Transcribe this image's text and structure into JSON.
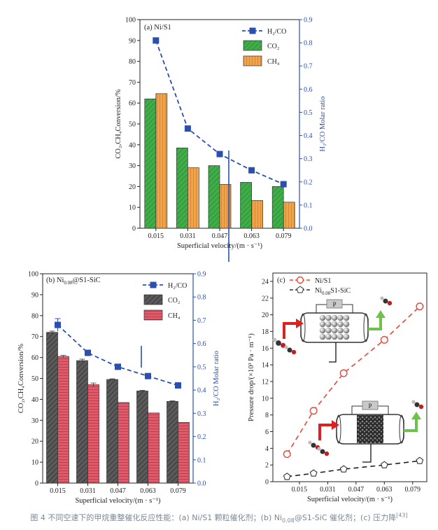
{
  "caption": {
    "text_before": "图 4   不同空速下的甲烷重整催化反应性能：(a) Ni/S1 颗粒催化剂；(b) Ni",
    "sub": "0.08",
    "text_after": "@S1-SiC 催化剂；(c) 压力降",
    "ref": "[43]"
  },
  "panels": {
    "a": {
      "label": "(a)   Ni/S1",
      "xlabel": "Superficial velocity/(m · s⁻¹)",
      "ylabel_left": "CO₂,CH₄Conversion/%",
      "ylabel_right": "H₂/CO Molar ratio",
      "legend": [
        "H₂/CO",
        "CO₂",
        "CH₄"
      ]
    },
    "b": {
      "label_prefix": "(b)   Ni",
      "label_sub": "0.08",
      "label_suffix": "@S1-SiC",
      "xlabel": "Superficial velocity/(m · s⁻¹)",
      "ylabel_left": "CO₂,CH₄Conversion/%",
      "ylabel_right": "H₂/CO Molar ratio",
      "legend": [
        "H₂/CO",
        "CO₂",
        "CH₄"
      ]
    },
    "c": {
      "label": "(c)",
      "xlabel": "Superficial velocity/(m · s⁻¹)",
      "ylabel": "Pressure drop/(×10³ Pa · m⁻¹)",
      "legend": [
        "Ni/S1",
        "Ni0.08S1-SiC"
      ],
      "p_label": "P"
    }
  },
  "chart_data": [
    {
      "panel": "a",
      "type": "bar",
      "categories": [
        "0.015",
        "0.031",
        "0.047",
        "0.063",
        "0.079"
      ],
      "ylim": [
        0,
        100
      ],
      "yticks": [
        0,
        10,
        20,
        30,
        40,
        50,
        60,
        70,
        80,
        90,
        100
      ],
      "y2lim": [
        0,
        0.9
      ],
      "y2ticks": [
        "0.0",
        "0.1",
        "0.2",
        "0.3",
        "0.4",
        "0.5",
        "0.6",
        "0.7",
        "0.8",
        "0.9"
      ],
      "series": [
        {
          "name": "CO₂",
          "values": [
            62,
            38.5,
            30,
            22,
            20
          ],
          "color": "#3fae49"
        },
        {
          "name": "CH₄",
          "values": [
            64.5,
            29,
            21,
            13.3,
            12.5
          ],
          "color": "#f0a54a"
        },
        {
          "name": "H₂/CO",
          "axis": "right",
          "values": [
            0.81,
            0.43,
            0.32,
            0.25,
            0.19
          ],
          "color": "#2b4fb0"
        }
      ]
    },
    {
      "panel": "b",
      "type": "bar",
      "categories": [
        "0.015",
        "0.031",
        "0.047",
        "0.063",
        "0.079"
      ],
      "ylim": [
        0,
        100
      ],
      "yticks": [
        0,
        10,
        20,
        30,
        40,
        50,
        60,
        70,
        80,
        90,
        100
      ],
      "y2lim": [
        0,
        0.9
      ],
      "y2ticks": [
        "0.0",
        "0.1",
        "0.2",
        "0.3",
        "0.4",
        "0.5",
        "0.6",
        "0.7",
        "0.8",
        "0.9"
      ],
      "series": [
        {
          "name": "CO₂",
          "values": [
            72,
            58.5,
            49.5,
            44,
            39
          ],
          "color": "#4a4a4a"
        },
        {
          "name": "CH₄",
          "values": [
            60.5,
            47,
            38.5,
            33.5,
            29
          ],
          "color": "#d6475a"
        },
        {
          "name": "H₂/CO",
          "axis": "right",
          "values": [
            0.68,
            0.56,
            0.5,
            0.46,
            0.42
          ],
          "color": "#2b4fb0"
        }
      ]
    },
    {
      "panel": "c",
      "type": "scatter",
      "x_ticks": [
        "0.015",
        "0.031",
        "0.047",
        "0.063",
        "0.079"
      ],
      "xlim": [
        0.0,
        0.087
      ],
      "ylim": [
        0,
        25
      ],
      "yticks": [
        0,
        2,
        4,
        6,
        8,
        10,
        12,
        14,
        16,
        18,
        20,
        22,
        24
      ],
      "series": [
        {
          "name": "Ni/S1",
          "x": [
            0.008,
            0.023,
            0.04,
            0.063,
            0.083
          ],
          "y": [
            3.3,
            8.5,
            13,
            17,
            21
          ],
          "color": "#e8453c"
        },
        {
          "name": "Ni0.08S1-SiC",
          "x": [
            0.008,
            0.023,
            0.04,
            0.063,
            0.083
          ],
          "y": [
            0.6,
            1.0,
            1.5,
            2.0,
            2.5
          ],
          "color": "#222222"
        }
      ]
    }
  ]
}
